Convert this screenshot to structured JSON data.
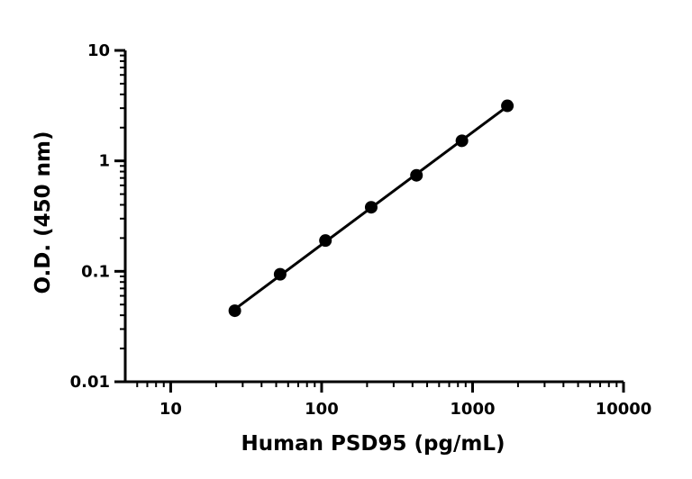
{
  "chart_data": {
    "type": "scatter",
    "title": "",
    "xlabel": "Human PSD95 (pg/mL)",
    "ylabel": "O.D. (450 nm)",
    "x_scale": "log",
    "y_scale": "log",
    "xlim": [
      5,
      10000
    ],
    "ylim": [
      0.01,
      10
    ],
    "x_ticks": [
      10,
      100,
      1000,
      10000
    ],
    "x_tick_labels": [
      "10",
      "100",
      "1000",
      "10000"
    ],
    "y_ticks": [
      0.01,
      0.1,
      1,
      10
    ],
    "y_tick_labels": [
      "0.01",
      "0.1",
      "1",
      "10"
    ],
    "grid": false,
    "legend": "none",
    "series": [
      {
        "x": [
          26.6,
          53.1,
          106,
          213,
          425,
          850,
          1700
        ],
        "y": [
          0.044,
          0.094,
          0.19,
          0.38,
          0.74,
          1.52,
          3.15
        ]
      }
    ],
    "fit_line": true,
    "colors": {
      "marker": "#000000",
      "line": "#000000",
      "axis": "#000000"
    }
  }
}
